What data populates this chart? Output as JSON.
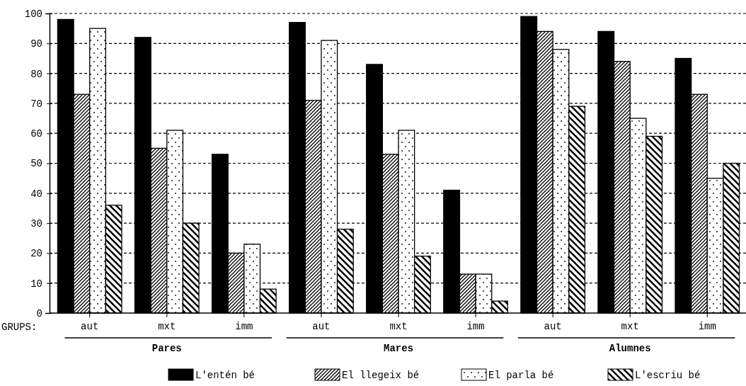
{
  "chart_data": {
    "type": "bar",
    "categories": [
      "aut",
      "mxt",
      "imm",
      "aut",
      "mxt",
      "imm",
      "aut",
      "mxt",
      "imm"
    ],
    "series": [
      {
        "name": "L'entén bé",
        "color": "#000000",
        "values": [
          98,
          92,
          53,
          97,
          83,
          41,
          99,
          94,
          85
        ]
      },
      {
        "name": "El llegeix bé",
        "color": "#000000",
        "values": [
          73,
          55,
          20,
          71,
          53,
          13,
          94,
          84,
          73
        ]
      },
      {
        "name": "El parla bé",
        "color": "#000000",
        "values": [
          95,
          61,
          23,
          91,
          61,
          13,
          88,
          65,
          45
        ]
      },
      {
        "name": "L'escriu bé",
        "color": "#000000",
        "values": [
          36,
          30,
          8,
          28,
          19,
          4,
          69,
          59,
          50
        ]
      }
    ],
    "ylim": [
      0,
      100
    ],
    "yticks": [
      0,
      10,
      20,
      30,
      40,
      50,
      60,
      70,
      80,
      90,
      100
    ],
    "grid": "y",
    "legend": "bottom",
    "annotations": [
      "GRUPS:",
      "Pares",
      "Mares",
      "Alumnes"
    ]
  }
}
